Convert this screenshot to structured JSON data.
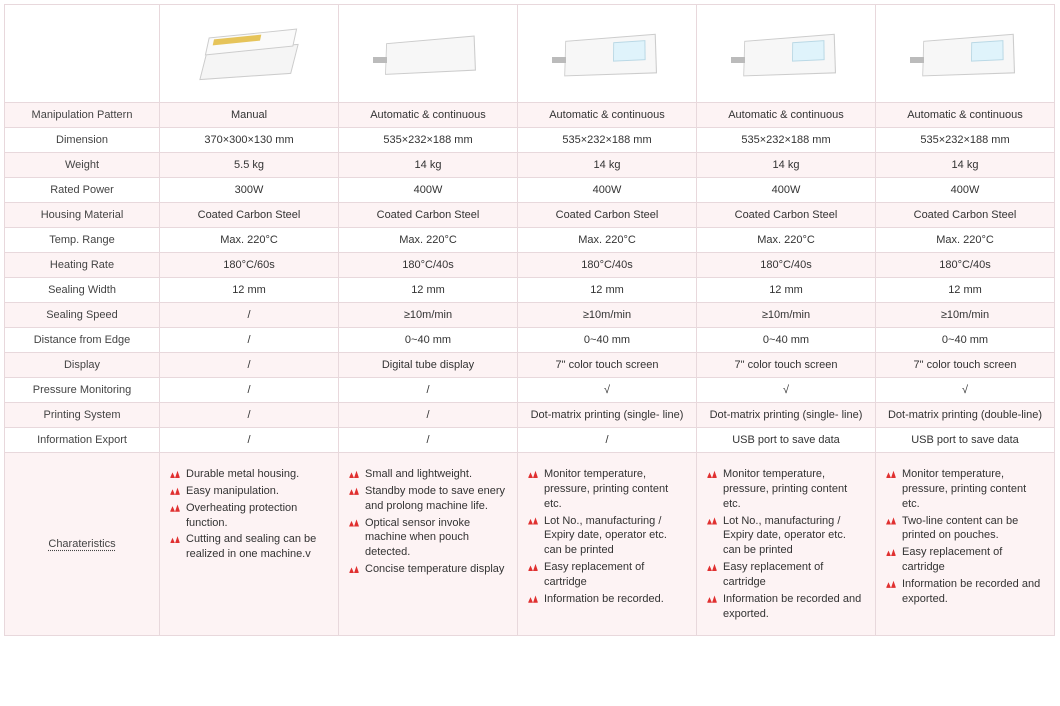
{
  "colors": {
    "band_pink": "#fdf3f4",
    "border": "#e8d8dc",
    "bullet": "#e03030",
    "text": "#333333"
  },
  "labels": {
    "manip": "Manipulation Pattern",
    "dim": "Dimension",
    "weight": "Weight",
    "power": "Rated Power",
    "housing": "Housing Material",
    "temp": "Temp. Range",
    "heat": "Heating Rate",
    "sealw": "Sealing Width",
    "seals": "Sealing Speed",
    "dist": "Distance from Edge",
    "disp": "Display",
    "press": "Pressure Monitoring",
    "print": "Printing System",
    "info": "Information Export",
    "char": "Charateristics"
  },
  "p": [
    {
      "manip": "Manual",
      "dim": "370×300×130 mm",
      "weight": "5.5 kg",
      "power": "300W",
      "housing": "Coated Carbon Steel",
      "temp": "Max. 220°C",
      "heat": "180°C/60s",
      "sealw": "12 mm",
      "seals": "/",
      "dist": "/",
      "disp": "/",
      "press": "/",
      "print": "/",
      "info": "/",
      "feat": [
        "Durable metal housing.",
        "Easy manipulation.",
        "Overheating protection function.",
        "Cutting and sealing can be realized in one machine.v"
      ]
    },
    {
      "manip": "Automatic & continuous",
      "dim": "535×232×188 mm",
      "weight": "14 kg",
      "power": "400W",
      "housing": "Coated Carbon Steel",
      "temp": "Max. 220°C",
      "heat": "180°C/40s",
      "sealw": "12 mm",
      "seals": "≥10m/min",
      "dist": "0~40 mm",
      "disp": "Digital tube display",
      "press": "/",
      "print": "/",
      "info": "/",
      "feat": [
        "Small and lightweight.",
        "Standby mode to save enery and prolong machine life.",
        "Optical sensor invoke machine when pouch detected.",
        "Concise temperature display"
      ]
    },
    {
      "manip": "Automatic & continuous",
      "dim": "535×232×188 mm",
      "weight": "14 kg",
      "power": "400W",
      "housing": "Coated Carbon Steel",
      "temp": "Max. 220°C",
      "heat": "180°C/40s",
      "sealw": "12 mm",
      "seals": "≥10m/min",
      "dist": "0~40 mm",
      "disp": "7\" color touch screen",
      "press": "√",
      "print": "Dot-matrix printing (single- line)",
      "info": "/",
      "feat": [
        "Monitor temperature, pressure, printing content etc.",
        "Lot No., manufacturing / Expiry date, operator etc. can be printed",
        "Easy replacement of cartridge",
        "Information be recorded."
      ]
    },
    {
      "manip": "Automatic & continuous",
      "dim": "535×232×188 mm",
      "weight": "14 kg",
      "power": "400W",
      "housing": "Coated Carbon Steel",
      "temp": "Max. 220°C",
      "heat": "180°C/40s",
      "sealw": "12 mm",
      "seals": "≥10m/min",
      "dist": "0~40 mm",
      "disp": "7\" color touch screen",
      "press": "√",
      "print": "Dot-matrix printing (single- line)",
      "info": "USB port to save data",
      "feat": [
        "Monitor temperature, pressure, printing content etc.",
        "Lot No., manufacturing / Expiry date, operator etc. can be printed",
        "Easy replacement of cartridge",
        "Information be recorded and exported."
      ]
    },
    {
      "manip": "Automatic & continuous",
      "dim": "535×232×188 mm",
      "weight": "14 kg",
      "power": "400W",
      "housing": "Coated Carbon Steel",
      "temp": "Max. 220°C",
      "heat": "180°C/40s",
      "sealw": "12 mm",
      "seals": "≥10m/min",
      "dist": "0~40 mm",
      "disp": "7\" color touch screen",
      "press": "√",
      "print": "Dot-matrix printing (double-line)",
      "info": "USB port to save data",
      "feat": [
        "Monitor temperature, pressure, printing content etc.",
        "Two-line content can be printed on pouches.",
        "Easy replacement of cartridge",
        "Information be recorded and exported."
      ]
    }
  ],
  "row_order": [
    "manip",
    "dim",
    "weight",
    "power",
    "housing",
    "temp",
    "heat",
    "sealw",
    "seals",
    "dist",
    "disp",
    "press",
    "print",
    "info"
  ],
  "row_bands": {
    "white": [
      "dim",
      "power",
      "temp",
      "sealw",
      "dist",
      "press",
      "info"
    ]
  }
}
